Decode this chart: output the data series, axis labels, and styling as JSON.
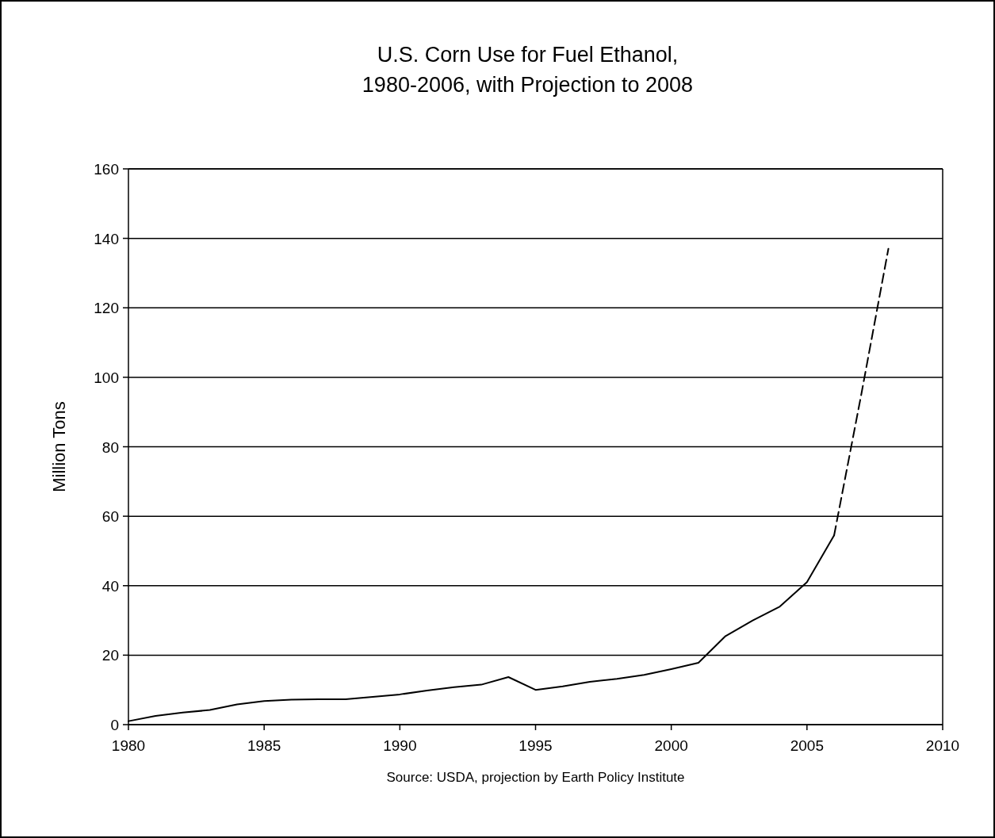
{
  "chart_data": {
    "type": "line",
    "title": "U.S. Corn Use for Fuel Ethanol,\n1980-2006, with Projection to 2008",
    "ylabel": "Million Tons",
    "annotations": [
      "Source: USDA, projection by Earth Policy Institute"
    ],
    "series": [
      {
        "color": "#000000",
        "line_style": "solid",
        "x": [
          1980,
          1981,
          1982,
          1983,
          1984,
          1985,
          1986,
          1987,
          1988,
          1989,
          1990,
          1991,
          1992,
          1993,
          1994,
          1995,
          1996,
          1997,
          1998,
          1999,
          2000,
          2001,
          2002,
          2003,
          2004,
          2005,
          2006
        ],
        "values": [
          1,
          2.5,
          3.5,
          4.2,
          5.8,
          6.8,
          7.2,
          7.3,
          7.3,
          8,
          8.7,
          9.8,
          10.8,
          11.5,
          13.7,
          10,
          11,
          12.3,
          13.2,
          14.3,
          16,
          17.8,
          25.5,
          30,
          34,
          41,
          54.5
        ]
      },
      {
        "color": "#000000",
        "line_style": "dashed",
        "x": [
          2006,
          2007,
          2008
        ],
        "values": [
          54.5,
          95,
          137
        ]
      }
    ],
    "xlim": [
      1980,
      2010
    ],
    "xticks": [
      1980,
      1985,
      1990,
      1995,
      2000,
      2005,
      2010
    ],
    "ylim": [
      0,
      160
    ],
    "yticks": [
      0,
      20,
      40,
      60,
      80,
      100,
      120,
      140,
      160
    ],
    "grid": "y",
    "marker": "none"
  }
}
